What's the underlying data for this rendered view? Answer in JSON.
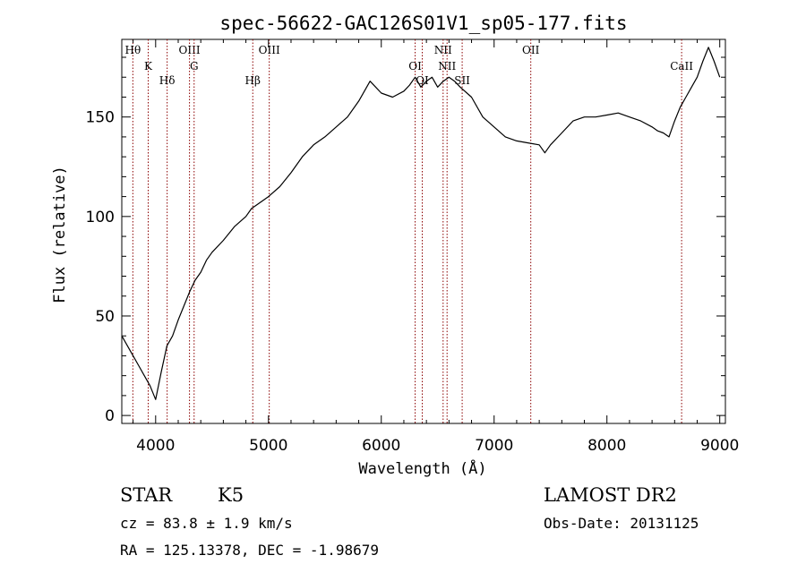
{
  "chart_data": {
    "type": "line",
    "title": "spec-56622-GAC126S01V1_sp05-177.fits",
    "xlabel": "Wavelength (Å)",
    "ylabel": "Flux (relative)",
    "xlim": [
      3700,
      9050
    ],
    "ylim": [
      -4,
      189
    ],
    "xticks": [
      4000,
      5000,
      6000,
      7000,
      8000,
      9000
    ],
    "xtick_labels": [
      "4000",
      "5000",
      "6000",
      "7000",
      "8000",
      "9000"
    ],
    "yticks": [
      0,
      50,
      100,
      150
    ],
    "ytick_labels": [
      "0",
      "50",
      "100",
      "150"
    ],
    "grid": false,
    "line_color": "#000000",
    "marker_color": "#8b0000",
    "spectrum": {
      "x": [
        3700,
        3750,
        3800,
        3850,
        3900,
        3950,
        4000,
        4050,
        4100,
        4150,
        4200,
        4250,
        4300,
        4350,
        4400,
        4450,
        4500,
        4600,
        4700,
        4800,
        4850,
        4900,
        5000,
        5100,
        5200,
        5300,
        5400,
        5500,
        5600,
        5700,
        5800,
        5850,
        5900,
        5950,
        6000,
        6100,
        6200,
        6250,
        6300,
        6350,
        6400,
        6450,
        6500,
        6550,
        6600,
        6650,
        6700,
        6800,
        6900,
        7000,
        7100,
        7200,
        7300,
        7400,
        7450,
        7500,
        7600,
        7700,
        7800,
        7900,
        8000,
        8100,
        8200,
        8300,
        8400,
        8450,
        8500,
        8550,
        8600,
        8650,
        8700,
        8750,
        8800,
        8850,
        8900,
        8950,
        9000
      ],
      "y": [
        40,
        35,
        30,
        25,
        20,
        15,
        8,
        22,
        35,
        40,
        48,
        55,
        62,
        68,
        72,
        78,
        82,
        88,
        95,
        100,
        104,
        106,
        110,
        115,
        122,
        130,
        136,
        140,
        145,
        150,
        158,
        163,
        168,
        165,
        162,
        160,
        163,
        166,
        170,
        165,
        168,
        170,
        165,
        168,
        170,
        168,
        165,
        160,
        150,
        145,
        140,
        138,
        137,
        136,
        132,
        136,
        142,
        148,
        150,
        150,
        151,
        152,
        150,
        148,
        145,
        143,
        142,
        140,
        148,
        155,
        160,
        165,
        170,
        178,
        185,
        178,
        170
      ]
    },
    "lines": [
      {
        "label": "Hθ",
        "wavelength": 3798
      },
      {
        "label": "K",
        "wavelength": 3934
      },
      {
        "label": "Hδ",
        "wavelength": 4102
      },
      {
        "label": "OIII",
        "wavelength": 4300
      },
      {
        "label": "G",
        "wavelength": 4341
      },
      {
        "label": "Hβ",
        "wavelength": 4861
      },
      {
        "label": "OIII",
        "wavelength": 5007
      },
      {
        "label": "OI",
        "wavelength": 6300
      },
      {
        "label": "OI",
        "wavelength": 6363
      },
      {
        "label": "NII",
        "wavelength": 6548
      },
      {
        "label": "NII",
        "wavelength": 6583
      },
      {
        "label": "SII",
        "wavelength": 6717
      },
      {
        "label": "OII",
        "wavelength": 7325
      },
      {
        "label": "CaII",
        "wavelength": 8662
      }
    ]
  },
  "info": {
    "class_label": "STAR",
    "subclass_label": "K5",
    "survey_label": "LAMOST DR2",
    "cz_text": "cz = 83.8 ± 1.9 km/s",
    "obs_date_text": "Obs-Date: 20131125",
    "radec_text": "RA = 125.13378, DEC =  -1.98679"
  }
}
